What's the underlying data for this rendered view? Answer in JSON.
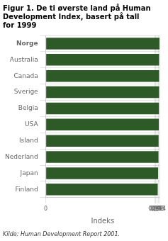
{
  "chart_data": {
    "type": "bar",
    "orientation": "horizontal",
    "title": "Figur 1. De ti øverste land på Human\nDevelopment Index, basert på tall\nfor 1999",
    "source": "Kilde: Human Development Report 2001.",
    "categories": [
      "Norge",
      "Australia",
      "Canada",
      "Sverige",
      "Belgia",
      "USA",
      "Island",
      "Nederland",
      "Japan",
      "Finland"
    ],
    "values": [
      0.939,
      0.936,
      0.936,
      0.936,
      0.935,
      0.934,
      0.932,
      0.931,
      0.928,
      0.925
    ],
    "color": "#2d5a27",
    "xlabel": "Indeks",
    "xlim": [
      0,
      0.94
    ],
    "xticks": [
      0,
      {
        "value": 0.9,
        "label": "0,90"
      },
      {
        "value": 0.91,
        "label": "0,91"
      },
      {
        "value": 0.92,
        "label": "0,92"
      },
      {
        "value": 0.93,
        "label": "0,93"
      },
      {
        "value": 0.94,
        "label": "0,94"
      }
    ],
    "grid": true
  }
}
